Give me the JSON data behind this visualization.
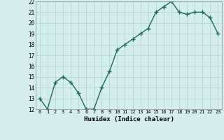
{
  "x": [
    0,
    1,
    2,
    3,
    4,
    5,
    6,
    7,
    8,
    9,
    10,
    11,
    12,
    13,
    14,
    15,
    16,
    17,
    18,
    19,
    20,
    21,
    22,
    23
  ],
  "y": [
    13,
    12,
    14.5,
    15,
    14.5,
    13.5,
    12,
    12,
    14,
    15.5,
    17.5,
    18,
    18.5,
    19,
    19.5,
    21,
    21.5,
    22,
    21,
    20.8,
    21,
    21,
    20.5,
    19
  ],
  "title": "",
  "xlabel": "Humidex (Indice chaleur)",
  "xlim": [
    -0.5,
    23.5
  ],
  "ylim": [
    12,
    22
  ],
  "yticks": [
    12,
    13,
    14,
    15,
    16,
    17,
    18,
    19,
    20,
    21,
    22
  ],
  "xticks": [
    0,
    1,
    2,
    3,
    4,
    5,
    6,
    7,
    8,
    9,
    10,
    11,
    12,
    13,
    14,
    15,
    16,
    17,
    18,
    19,
    20,
    21,
    22,
    23
  ],
  "xtick_labels": [
    "0",
    "1",
    "2",
    "3",
    "4",
    "5",
    "6",
    "7",
    "8",
    "9",
    "10",
    "11",
    "12",
    "13",
    "14",
    "15",
    "16",
    "17",
    "18",
    "19",
    "20",
    "21",
    "22",
    "23"
  ],
  "line_color": "#1a6b5a",
  "marker": "+",
  "marker_size": 4,
  "bg_color": "#d4eeee",
  "grid_color": "#b0d0d0",
  "line_width": 1.0
}
